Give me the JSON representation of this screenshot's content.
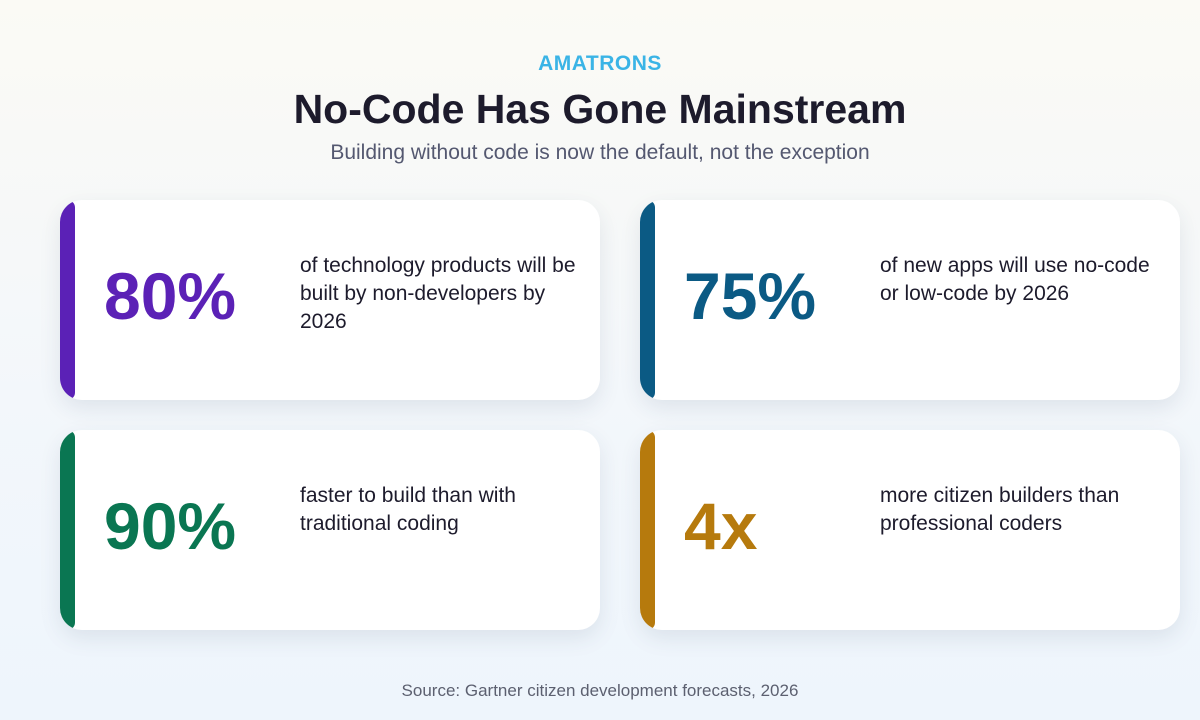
{
  "header": {
    "brand": "AMATRONS",
    "title": "No-Code Has Gone Mainstream",
    "subtitle": "Building without code is now the default, not the exception"
  },
  "cards": [
    {
      "stat": "80%",
      "text": "of technology products will be built by non-developers by 2026",
      "color": "#5b21b6"
    },
    {
      "stat": "75%",
      "text": "of new apps will use no-code or low-code by 2026",
      "color": "#0b5a84"
    },
    {
      "stat": "90%",
      "text": "faster to build than with traditional coding",
      "color": "#0a7652"
    },
    {
      "stat": "4x",
      "text": "more citizen builders than professional coders",
      "color": "#b67a0d"
    }
  ],
  "footer": {
    "source": "Source: Gartner citizen development forecasts, 2026"
  }
}
